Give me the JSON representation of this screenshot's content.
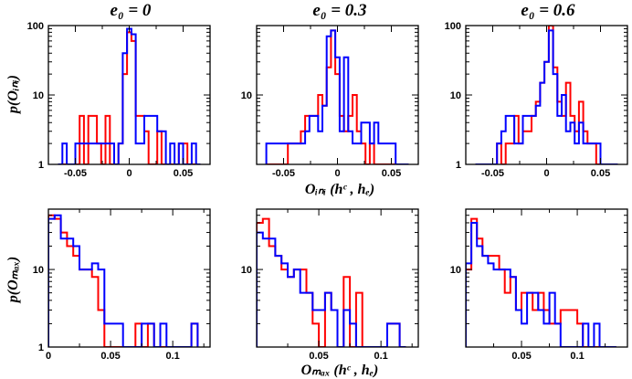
{
  "figure": {
    "col_titles": [
      "e₀ = 0",
      "e₀ = 0.3",
      "e₀ = 0.6"
    ],
    "row_ylabels": [
      "p(Oᵢₙᵢ)",
      "p(Oₘₐₓ)"
    ],
    "row_xlabels": [
      "Oᵢₙᵢ (hᶜ , hₑ)",
      "Oₘₐₓ (hᶜ , hₑ)"
    ]
  },
  "chart_data": [
    {
      "type": "step-histogram",
      "panel": "top-left",
      "row": 0,
      "col": 0,
      "xlim": [
        -0.075,
        0.075
      ],
      "ylim": [
        1,
        100
      ],
      "yscale": "log",
      "xticks": [
        -0.05,
        0,
        0.05
      ],
      "xtick_labels": [
        "-0.05",
        "0",
        "0.05"
      ],
      "yticks": [
        1,
        10,
        100
      ],
      "ytick_labels": [
        "1",
        "10",
        "100"
      ],
      "bin_edges": [
        -0.066,
        -0.062,
        -0.058,
        -0.054,
        -0.05,
        -0.046,
        -0.042,
        -0.038,
        -0.034,
        -0.03,
        -0.026,
        -0.022,
        -0.018,
        -0.014,
        -0.01,
        -0.006,
        -0.002,
        0.002,
        0.006,
        0.01,
        0.014,
        0.018,
        0.022,
        0.026,
        0.03,
        0.034,
        0.038,
        0.042,
        0.046,
        0.05,
        0.054,
        0.058,
        0.062,
        0.066
      ],
      "series": [
        {
          "name": "red",
          "color": "#ff0000",
          "counts": [
            0,
            0,
            0,
            0,
            0,
            5,
            1,
            5,
            5,
            2,
            1,
            5,
            1,
            1,
            2,
            20,
            80,
            60,
            5,
            5,
            3,
            1,
            1,
            3,
            1,
            1,
            1,
            1,
            2,
            2,
            1,
            1,
            0
          ]
        },
        {
          "name": "blue",
          "color": "#0000ff",
          "counts": [
            0,
            2,
            1,
            1,
            2,
            2,
            2,
            2,
            2,
            2,
            2,
            2,
            2,
            1,
            2,
            40,
            90,
            75,
            2,
            2,
            5,
            5,
            5,
            3,
            3,
            1,
            2,
            1,
            2,
            1,
            1,
            2,
            0
          ]
        }
      ]
    },
    {
      "type": "step-histogram",
      "panel": "top-middle",
      "row": 0,
      "col": 1,
      "xlim": [
        -0.075,
        0.075
      ],
      "ylim": [
        1,
        100
      ],
      "yscale": "log",
      "xticks": [
        -0.05,
        0,
        0.05
      ],
      "xtick_labels": [
        "-0.05",
        "0",
        "0.05"
      ],
      "yticks": [
        10
      ],
      "ytick_labels": [
        "10"
      ],
      "bin_edges": [
        -0.066,
        -0.062,
        -0.058,
        -0.054,
        -0.05,
        -0.046,
        -0.042,
        -0.038,
        -0.034,
        -0.03,
        -0.026,
        -0.022,
        -0.018,
        -0.014,
        -0.01,
        -0.006,
        -0.002,
        0.002,
        0.006,
        0.01,
        0.014,
        0.018,
        0.022,
        0.026,
        0.03,
        0.034,
        0.038,
        0.042,
        0.046,
        0.05,
        0.054,
        0.058,
        0.062,
        0.066
      ],
      "series": [
        {
          "name": "red",
          "color": "#ff0000",
          "counts": [
            1,
            1,
            1,
            1,
            1,
            2,
            2,
            2,
            3,
            5,
            5,
            5,
            10,
            7,
            25,
            85,
            20,
            5,
            3,
            5,
            10,
            3,
            2,
            1,
            2,
            1,
            1,
            1,
            1,
            1,
            1,
            1,
            1
          ]
        },
        {
          "name": "blue",
          "color": "#0000ff",
          "counts": [
            2,
            2,
            2,
            2,
            2,
            2,
            2,
            2,
            2,
            3,
            5,
            5,
            3,
            7,
            70,
            85,
            35,
            3,
            35,
            3,
            2,
            2,
            4,
            4,
            2,
            4,
            2,
            2,
            2,
            2,
            1,
            1,
            1
          ]
        }
      ]
    },
    {
      "type": "step-histogram",
      "panel": "top-right",
      "row": 0,
      "col": 2,
      "xlim": [
        -0.075,
        0.075
      ],
      "ylim": [
        1,
        100
      ],
      "yscale": "log",
      "xticks": [
        -0.05,
        0,
        0.05
      ],
      "xtick_labels": [
        "-0.05",
        "0",
        "0.05"
      ],
      "yticks": [
        1,
        10,
        100
      ],
      "ytick_labels": [
        "1",
        "10",
        "100"
      ],
      "bin_edges": [
        -0.066,
        -0.062,
        -0.058,
        -0.054,
        -0.05,
        -0.046,
        -0.042,
        -0.038,
        -0.034,
        -0.03,
        -0.026,
        -0.022,
        -0.018,
        -0.014,
        -0.01,
        -0.006,
        -0.002,
        0.002,
        0.006,
        0.01,
        0.014,
        0.018,
        0.022,
        0.026,
        0.03,
        0.034,
        0.038,
        0.042,
        0.046,
        0.05,
        0.054,
        0.058,
        0.062,
        0.066
      ],
      "series": [
        {
          "name": "red",
          "color": "#ff0000",
          "counts": [
            1,
            1,
            1,
            1,
            1,
            2,
            1,
            2,
            2,
            5,
            2,
            3,
            3,
            5,
            8,
            15,
            30,
            100,
            25,
            8,
            5,
            15,
            5,
            3,
            8,
            3,
            2,
            2,
            1,
            1,
            1,
            1,
            1
          ]
        },
        {
          "name": "blue",
          "color": "#0000ff",
          "counts": [
            1,
            1,
            1,
            1,
            1,
            2,
            3,
            5,
            5,
            2,
            2,
            5,
            5,
            5,
            7,
            15,
            30,
            85,
            20,
            5,
            10,
            3,
            4,
            2,
            4,
            2,
            2,
            2,
            2,
            1,
            1,
            1,
            1
          ]
        }
      ]
    },
    {
      "type": "step-histogram",
      "panel": "bottom-left",
      "row": 1,
      "col": 0,
      "xlim": [
        0,
        0.13
      ],
      "ylim": [
        1,
        60
      ],
      "yscale": "log",
      "xticks": [
        0,
        0.05,
        0.1
      ],
      "xtick_labels": [
        "0",
        "0.05",
        "0.1"
      ],
      "yticks": [
        1,
        10
      ],
      "ytick_labels": [
        "1",
        "10"
      ],
      "bin_edges": [
        0,
        0.005,
        0.01,
        0.015,
        0.02,
        0.025,
        0.03,
        0.035,
        0.04,
        0.045,
        0.05,
        0.055,
        0.06,
        0.065,
        0.07,
        0.075,
        0.08,
        0.085,
        0.09,
        0.095,
        0.1,
        0.105,
        0.11,
        0.115,
        0.12
      ],
      "series": [
        {
          "name": "red",
          "color": "#ff0000",
          "counts": [
            50,
            45,
            30,
            20,
            15,
            10,
            10,
            8,
            3,
            1,
            1,
            1,
            1,
            1,
            2,
            1,
            2,
            1,
            1,
            1,
            1,
            1,
            1,
            2
          ]
        },
        {
          "name": "blue",
          "color": "#0000ff",
          "counts": [
            45,
            50,
            25,
            25,
            20,
            10,
            10,
            12,
            10,
            2,
            2,
            2,
            1,
            1,
            1,
            2,
            2,
            1,
            2,
            1,
            1,
            1,
            1,
            2
          ]
        }
      ]
    },
    {
      "type": "step-histogram",
      "panel": "bottom-middle",
      "row": 1,
      "col": 1,
      "xlim": [
        0,
        0.13
      ],
      "ylim": [
        1,
        60
      ],
      "yscale": "log",
      "xticks": [
        0.05,
        0.1
      ],
      "xtick_labels": [
        "0.05",
        "0.1"
      ],
      "yticks": [
        10
      ],
      "ytick_labels": [
        "10"
      ],
      "bin_edges": [
        0,
        0.005,
        0.01,
        0.015,
        0.02,
        0.025,
        0.03,
        0.035,
        0.04,
        0.045,
        0.05,
        0.055,
        0.06,
        0.065,
        0.07,
        0.075,
        0.08,
        0.085,
        0.09,
        0.095,
        0.1,
        0.105,
        0.11,
        0.115,
        0.12
      ],
      "series": [
        {
          "name": "red",
          "color": "#ff0000",
          "counts": [
            40,
            45,
            20,
            15,
            10,
            8,
            10,
            10,
            5,
            2,
            1,
            5,
            3,
            1,
            8,
            1,
            5,
            1,
            1,
            1,
            1,
            2,
            2,
            1
          ]
        },
        {
          "name": "blue",
          "color": "#0000ff",
          "counts": [
            30,
            25,
            25,
            15,
            12,
            8,
            10,
            5,
            5,
            3,
            3,
            5,
            3,
            1,
            3,
            2,
            1,
            1,
            1,
            1,
            1,
            2,
            2,
            1
          ]
        }
      ]
    },
    {
      "type": "step-histogram",
      "panel": "bottom-right",
      "row": 1,
      "col": 2,
      "xlim": [
        0,
        0.145
      ],
      "ylim": [
        1,
        60
      ],
      "yscale": "log",
      "xticks": [
        0.05,
        0.1
      ],
      "xtick_labels": [
        "0.05",
        "0.1"
      ],
      "yticks": [
        10
      ],
      "ytick_labels": [
        "10"
      ],
      "bin_edges": [
        0,
        0.005,
        0.01,
        0.015,
        0.02,
        0.025,
        0.03,
        0.035,
        0.04,
        0.045,
        0.05,
        0.055,
        0.06,
        0.065,
        0.07,
        0.075,
        0.08,
        0.085,
        0.09,
        0.095,
        0.1,
        0.105,
        0.11,
        0.115,
        0.12,
        0.125,
        0.13,
        0.135
      ],
      "series": [
        {
          "name": "red",
          "color": "#ff0000",
          "counts": [
            10,
            45,
            25,
            15,
            15,
            15,
            10,
            5,
            8,
            3,
            5,
            5,
            3,
            5,
            3,
            2,
            2,
            3,
            3,
            3,
            2,
            1,
            1,
            1,
            1,
            1,
            1
          ]
        },
        {
          "name": "blue",
          "color": "#0000ff",
          "counts": [
            12,
            40,
            20,
            15,
            12,
            10,
            10,
            10,
            8,
            3,
            2,
            5,
            5,
            3,
            2,
            5,
            2,
            1,
            1,
            1,
            1,
            2,
            1,
            2,
            1,
            1,
            1
          ]
        }
      ]
    }
  ]
}
